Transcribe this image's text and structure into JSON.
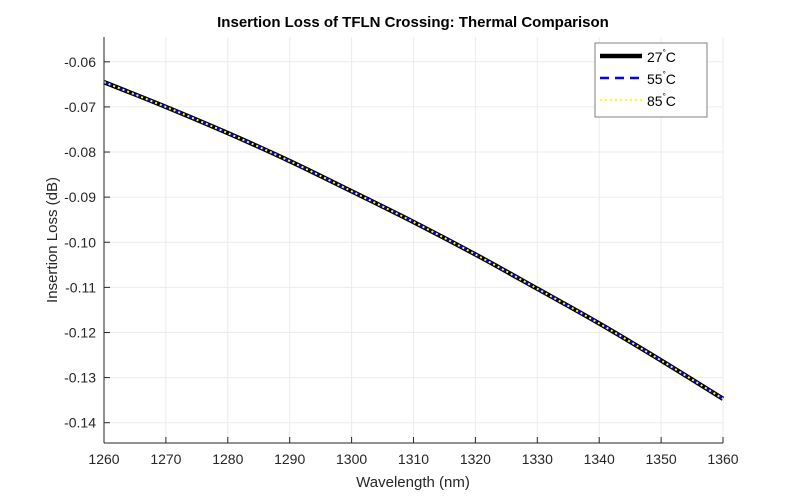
{
  "chart_data": {
    "type": "line",
    "title": "Insertion Loss of TFLN Crossing: Thermal Comparison",
    "xlabel": "Wavelength (nm)",
    "ylabel": "Insertion Loss (dB)",
    "xlim": [
      1260,
      1360
    ],
    "ylim": [
      -0.1445,
      -0.0545
    ],
    "xticks": [
      1260,
      1270,
      1280,
      1290,
      1300,
      1310,
      1320,
      1330,
      1340,
      1350,
      1360
    ],
    "xtick_labels": [
      "1260",
      "1270",
      "1280",
      "1290",
      "1300",
      "1310",
      "1320",
      "1330",
      "1340",
      "1350",
      "1360"
    ],
    "yticks": [
      -0.06,
      -0.07,
      -0.08,
      -0.09,
      -0.1,
      -0.11,
      -0.12,
      -0.13,
      -0.14
    ],
    "ytick_labels": [
      "-0.06",
      "-0.07",
      "-0.08",
      "-0.09",
      "-0.10",
      "-0.11",
      "-0.12",
      "-0.13",
      "-0.14"
    ],
    "grid": true,
    "legend_position": "top-right",
    "x": [
      1260,
      1270,
      1280,
      1290,
      1300,
      1310,
      1320,
      1330,
      1340,
      1350,
      1360
    ],
    "series": [
      {
        "name": "27°C",
        "label_num": "27",
        "label_unit": "C",
        "color": "#000000",
        "style": "solid",
        "values": [
          -0.0645,
          -0.07,
          -0.0758,
          -0.082,
          -0.0887,
          -0.0955,
          -0.1027,
          -0.1103,
          -0.118,
          -0.1262,
          -0.1347
        ]
      },
      {
        "name": "55°C",
        "label_num": "55",
        "label_unit": "C",
        "color": "#0000ff",
        "style": "dashed",
        "values": [
          -0.0645,
          -0.07,
          -0.0758,
          -0.082,
          -0.0887,
          -0.0955,
          -0.1027,
          -0.1103,
          -0.118,
          -0.1262,
          -0.1347
        ]
      },
      {
        "name": "85°C",
        "label_num": "85",
        "label_unit": "C",
        "color": "#ffff00",
        "style": "dotted",
        "values": [
          -0.0645,
          -0.07,
          -0.0758,
          -0.082,
          -0.0887,
          -0.0955,
          -0.1027,
          -0.1103,
          -0.118,
          -0.1262,
          -0.1347
        ]
      }
    ]
  }
}
